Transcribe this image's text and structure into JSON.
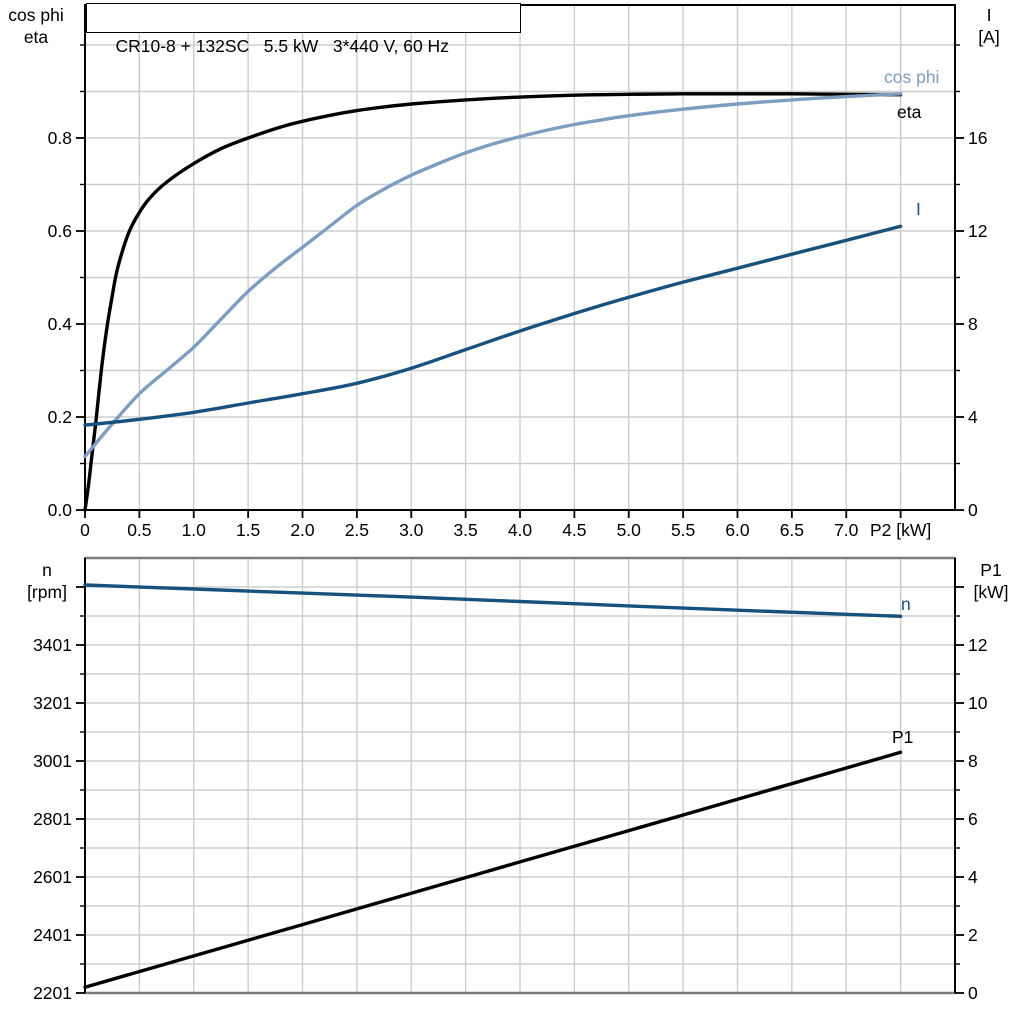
{
  "colors": {
    "eta": "#000000",
    "cos_phi": "#7D9DC1",
    "current": "#17517E",
    "speed": "#17517E",
    "p1": "#000000",
    "grid": "#CDCDCD",
    "axis": "#000000",
    "frame_gray": "#7D7D7D",
    "background": "#FFFFFF"
  },
  "chart_data": [
    {
      "id": "top",
      "type": "line",
      "title": "CR10-8 + 132SC   5.5 kW   3*440 V, 60 Hz",
      "x_label": "P2 [kW]",
      "xlim": [
        0,
        8
      ],
      "x_grid_step": 0.5,
      "x_tick_values": [
        0,
        0.5,
        1.0,
        1.5,
        2.0,
        2.5,
        3.0,
        3.5,
        4.0,
        4.5,
        5.0,
        5.5,
        6.0,
        6.5,
        7.0,
        7.5
      ],
      "x_tick_labels": [
        "0",
        "0.5",
        "1.0",
        "1.5",
        "2.0",
        "2.5",
        "3.0",
        "3.5",
        "4.0",
        "4.5",
        "5.0",
        "5.5",
        "6.0",
        "6.5",
        "7.0",
        "P2 [kW]"
      ],
      "y_left": {
        "label_lines": [
          "cos phi",
          "eta"
        ],
        "lim": [
          0,
          1.086
        ],
        "tick_values": [
          0,
          0.2,
          0.4,
          0.6,
          0.8
        ],
        "tick_labels": [
          "0.0",
          "0.2",
          "0.4",
          "0.6",
          "0.8"
        ],
        "minor_step": 0.1
      },
      "y_right": {
        "label_lines": [
          "I",
          "[A]"
        ],
        "lim": [
          0,
          21.72
        ],
        "tick_values": [
          0,
          4,
          8,
          12,
          16
        ],
        "tick_labels": [
          "0",
          "4",
          "8",
          "12",
          "16"
        ],
        "minor_step": 2
      },
      "grid": true,
      "legend_position": "curve-end-labels",
      "series": [
        {
          "name": "eta",
          "label": "eta",
          "axis": "left",
          "color": "#000000",
          "points": [
            [
              0,
              0
            ],
            [
              0.03,
              0.05
            ],
            [
              0.06,
              0.11
            ],
            [
              0.1,
              0.19
            ],
            [
              0.15,
              0.3
            ],
            [
              0.2,
              0.39
            ],
            [
              0.25,
              0.46
            ],
            [
              0.3,
              0.52
            ],
            [
              0.4,
              0.595
            ],
            [
              0.5,
              0.64
            ],
            [
              0.6,
              0.672
            ],
            [
              0.75,
              0.705
            ],
            [
              1.0,
              0.745
            ],
            [
              1.25,
              0.777
            ],
            [
              1.5,
              0.8
            ],
            [
              1.75,
              0.82
            ],
            [
              2.0,
              0.836
            ],
            [
              2.5,
              0.859
            ],
            [
              3.0,
              0.873
            ],
            [
              3.5,
              0.882
            ],
            [
              4.0,
              0.888
            ],
            [
              4.5,
              0.892
            ],
            [
              5.0,
              0.894
            ],
            [
              5.5,
              0.895
            ],
            [
              6.0,
              0.895
            ],
            [
              6.5,
              0.895
            ],
            [
              7.0,
              0.894
            ],
            [
              7.5,
              0.893
            ]
          ]
        },
        {
          "name": "cos phi",
          "label": "cos phi",
          "axis": "left",
          "color": "#7D9DC1",
          "points": [
            [
              0,
              0.115
            ],
            [
              0.25,
              0.185
            ],
            [
              0.5,
              0.25
            ],
            [
              0.75,
              0.3
            ],
            [
              1.0,
              0.35
            ],
            [
              1.25,
              0.41
            ],
            [
              1.5,
              0.47
            ],
            [
              1.75,
              0.52
            ],
            [
              2.0,
              0.565
            ],
            [
              2.25,
              0.61
            ],
            [
              2.5,
              0.655
            ],
            [
              2.75,
              0.69
            ],
            [
              3.0,
              0.72
            ],
            [
              3.25,
              0.745
            ],
            [
              3.5,
              0.768
            ],
            [
              3.75,
              0.787
            ],
            [
              4.0,
              0.803
            ],
            [
              4.25,
              0.817
            ],
            [
              4.5,
              0.829
            ],
            [
              4.75,
              0.839
            ],
            [
              5.0,
              0.848
            ],
            [
              5.5,
              0.862
            ],
            [
              6.0,
              0.873
            ],
            [
              6.5,
              0.882
            ],
            [
              7.0,
              0.889
            ],
            [
              7.5,
              0.895
            ]
          ]
        },
        {
          "name": "I",
          "label": "I",
          "axis": "right",
          "color": "#17517E",
          "points": [
            [
              0,
              3.65
            ],
            [
              0.5,
              3.9
            ],
            [
              1.0,
              4.2
            ],
            [
              1.5,
              4.6
            ],
            [
              2.0,
              5.0
            ],
            [
              2.5,
              5.45
            ],
            [
              3.0,
              6.1
            ],
            [
              3.5,
              6.9
            ],
            [
              4.0,
              7.7
            ],
            [
              4.5,
              8.45
            ],
            [
              5.0,
              9.15
            ],
            [
              5.5,
              9.8
            ],
            [
              6.0,
              10.4
            ],
            [
              6.5,
              11.0
            ],
            [
              7.0,
              11.6
            ],
            [
              7.5,
              12.2
            ]
          ]
        }
      ]
    },
    {
      "id": "bottom",
      "type": "line",
      "title": "",
      "x_label": "",
      "xlim": [
        0,
        8
      ],
      "x_grid_step": 0.5,
      "y_left": {
        "label_lines": [
          "n",
          "[rpm]"
        ],
        "lim": [
          2201,
          3701
        ],
        "tick_values": [
          2201,
          2401,
          2601,
          2801,
          3001,
          3201,
          3401
        ],
        "tick_labels": [
          "2201",
          "2401",
          "2601",
          "2801",
          "3001",
          "3201",
          "3401"
        ],
        "minor_step": 100,
        "extra_unlabeled_ticks": [
          3601
        ]
      },
      "y_right": {
        "label_lines": [
          "P1",
          "[kW]"
        ],
        "lim": [
          0,
          15
        ],
        "tick_values": [
          0,
          2,
          4,
          6,
          8,
          10,
          12
        ],
        "tick_labels": [
          "0",
          "2",
          "4",
          "6",
          "8",
          "10",
          "12"
        ],
        "minor_step": 1,
        "extra_unlabeled_ticks": [
          14
        ]
      },
      "grid": true,
      "legend_position": "curve-end-labels",
      "series": [
        {
          "name": "n",
          "label": "n",
          "axis": "left",
          "color": "#17517E",
          "points": [
            [
              0,
              3608
            ],
            [
              1,
              3594
            ],
            [
              2,
              3580
            ],
            [
              3,
              3566
            ],
            [
              4,
              3551
            ],
            [
              5,
              3536
            ],
            [
              6,
              3521
            ],
            [
              7,
              3507
            ],
            [
              7.5,
              3500
            ]
          ]
        },
        {
          "name": "P1",
          "label": "P1",
          "axis": "right",
          "color": "#000000",
          "points": [
            [
              0,
              0.2
            ],
            [
              1,
              1.28
            ],
            [
              2,
              2.36
            ],
            [
              3,
              3.44
            ],
            [
              4,
              4.52
            ],
            [
              5,
              5.6
            ],
            [
              6,
              6.68
            ],
            [
              7,
              7.76
            ],
            [
              7.5,
              8.3
            ]
          ]
        }
      ]
    }
  ]
}
